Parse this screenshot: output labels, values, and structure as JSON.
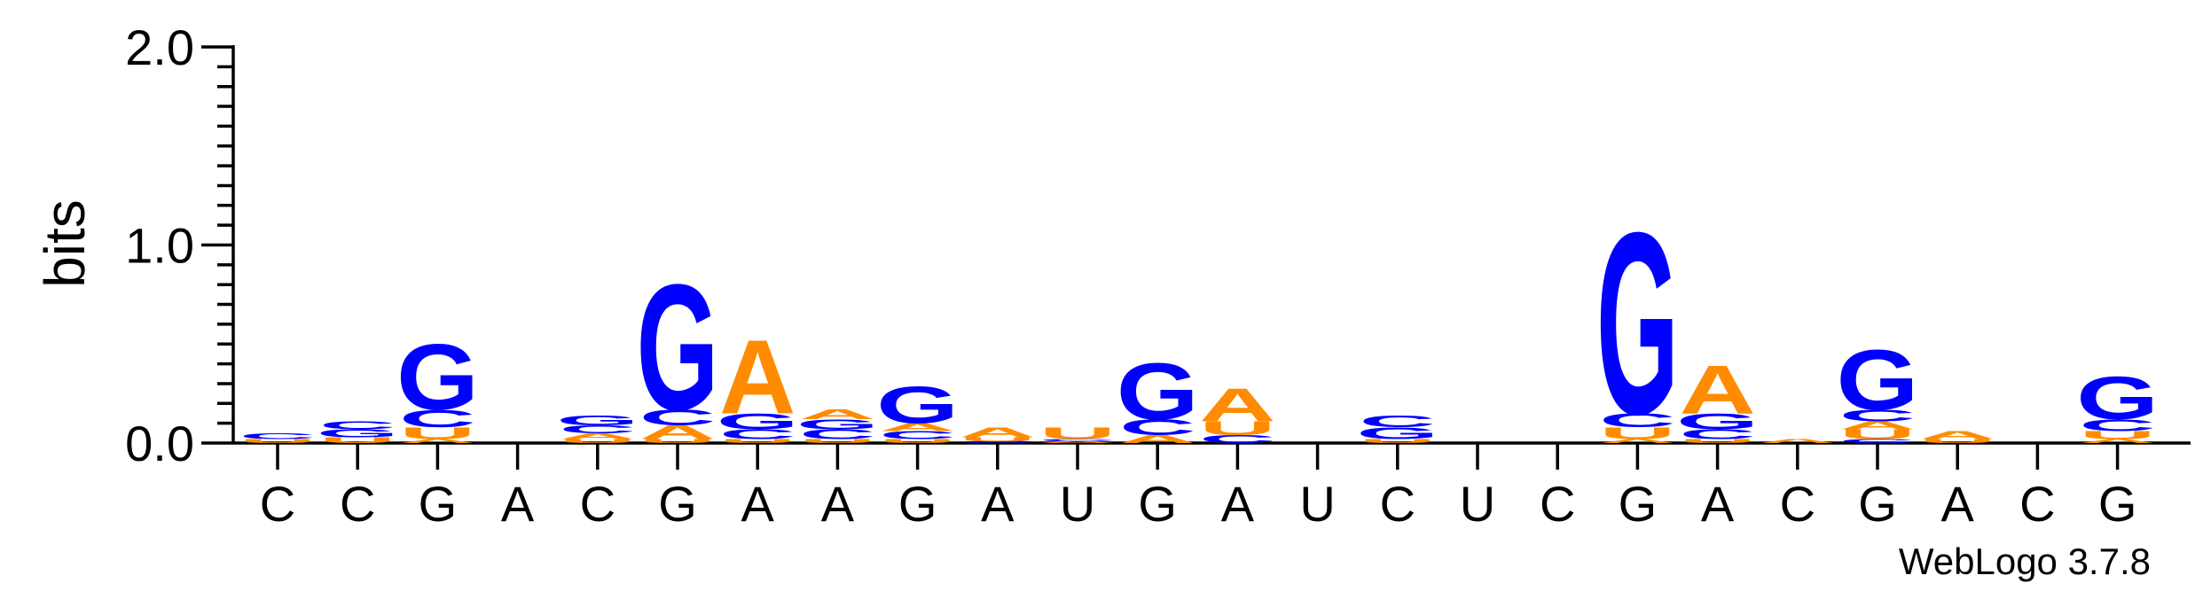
{
  "chart_data": {
    "type": "sequence-logo",
    "ylabel": "bits",
    "ylim": [
      0,
      2.0
    ],
    "y_ticks": [
      "0.0",
      "1.0",
      "2.0"
    ],
    "x_ticks": [
      "C",
      "C",
      "G",
      "A",
      "C",
      "G",
      "A",
      "A",
      "G",
      "A",
      "U",
      "G",
      "A",
      "U",
      "C",
      "U",
      "C",
      "G",
      "A",
      "C",
      "G",
      "A",
      "C",
      "G"
    ],
    "colors": {
      "A": "#ff8c00",
      "C": "#0000ff",
      "G": "#0000ff",
      "U": "#ff8c00"
    },
    "positions": [
      {
        "stack": [
          {
            "letter": "U",
            "bits": 0.02
          },
          {
            "letter": "C",
            "bits": 0.03
          }
        ]
      },
      {
        "stack": [
          {
            "letter": "U",
            "bits": 0.03
          },
          {
            "letter": "G",
            "bits": 0.04
          },
          {
            "letter": "C",
            "bits": 0.04
          }
        ]
      },
      {
        "stack": [
          {
            "letter": "A",
            "bits": 0.02
          },
          {
            "letter": "U",
            "bits": 0.06
          },
          {
            "letter": "C",
            "bits": 0.09
          },
          {
            "letter": "G",
            "bits": 0.34
          }
        ]
      },
      {
        "stack": []
      },
      {
        "stack": [
          {
            "letter": "U",
            "bits": 0.02
          },
          {
            "letter": "A",
            "bits": 0.03
          },
          {
            "letter": "C",
            "bits": 0.04
          },
          {
            "letter": "G",
            "bits": 0.05
          }
        ]
      },
      {
        "stack": [
          {
            "letter": "U",
            "bits": 0.02
          },
          {
            "letter": "A",
            "bits": 0.07
          },
          {
            "letter": "C",
            "bits": 0.08
          },
          {
            "letter": "G",
            "bits": 0.65
          }
        ]
      },
      {
        "stack": [
          {
            "letter": "U",
            "bits": 0.02
          },
          {
            "letter": "C",
            "bits": 0.05
          },
          {
            "letter": "G",
            "bits": 0.08
          },
          {
            "letter": "A",
            "bits": 0.38
          }
        ]
      },
      {
        "stack": [
          {
            "letter": "U",
            "bits": 0.02
          },
          {
            "letter": "C",
            "bits": 0.05
          },
          {
            "letter": "G",
            "bits": 0.05
          },
          {
            "letter": "A",
            "bits": 0.05
          }
        ]
      },
      {
        "stack": [
          {
            "letter": "U",
            "bits": 0.02
          },
          {
            "letter": "C",
            "bits": 0.04
          },
          {
            "letter": "A",
            "bits": 0.04
          },
          {
            "letter": "G",
            "bits": 0.19
          }
        ]
      },
      {
        "stack": [
          {
            "letter": "C",
            "bits": 0.01
          },
          {
            "letter": "U",
            "bits": 0.02
          },
          {
            "letter": "A",
            "bits": 0.05
          }
        ]
      },
      {
        "stack": [
          {
            "letter": "A",
            "bits": 0.01
          },
          {
            "letter": "C",
            "bits": 0.01
          },
          {
            "letter": "U",
            "bits": 0.06
          }
        ]
      },
      {
        "stack": [
          {
            "letter": "A",
            "bits": 0.04
          },
          {
            "letter": "C",
            "bits": 0.08
          },
          {
            "letter": "G",
            "bits": 0.29
          }
        ]
      },
      {
        "stack": [
          {
            "letter": "C",
            "bits": 0.04
          },
          {
            "letter": "U",
            "bits": 0.07
          },
          {
            "letter": "A",
            "bits": 0.17
          }
        ]
      },
      {
        "stack": []
      },
      {
        "stack": [
          {
            "letter": "U",
            "bits": 0.02
          },
          {
            "letter": "G",
            "bits": 0.06
          },
          {
            "letter": "C",
            "bits": 0.06
          }
        ]
      },
      {
        "stack": []
      },
      {
        "stack": []
      },
      {
        "stack": [
          {
            "letter": "A",
            "bits": 0.02
          },
          {
            "letter": "U",
            "bits": 0.06
          },
          {
            "letter": "C",
            "bits": 0.07
          },
          {
            "letter": "G",
            "bits": 0.94
          }
        ]
      },
      {
        "stack": [
          {
            "letter": "U",
            "bits": 0.02
          },
          {
            "letter": "C",
            "bits": 0.05
          },
          {
            "letter": "G",
            "bits": 0.08
          },
          {
            "letter": "A",
            "bits": 0.25
          }
        ]
      },
      {
        "stack": [
          {
            "letter": "A",
            "bits": 0.02
          }
        ]
      },
      {
        "stack": [
          {
            "letter": "C",
            "bits": 0.02
          },
          {
            "letter": "U",
            "bits": 0.05
          },
          {
            "letter": "A",
            "bits": 0.04
          },
          {
            "letter": "C",
            "bits": 0.06
          },
          {
            "letter": "G",
            "bits": 0.31
          }
        ]
      },
      {
        "stack": [
          {
            "letter": "U",
            "bits": 0.02
          },
          {
            "letter": "A",
            "bits": 0.04
          }
        ]
      },
      {
        "stack": []
      },
      {
        "stack": [
          {
            "letter": "A",
            "bits": 0.02
          },
          {
            "letter": "U",
            "bits": 0.04
          },
          {
            "letter": "C",
            "bits": 0.06
          },
          {
            "letter": "G",
            "bits": 0.22
          }
        ]
      }
    ],
    "grid": false,
    "legend": "none"
  },
  "credit": "WebLogo 3.7.8"
}
